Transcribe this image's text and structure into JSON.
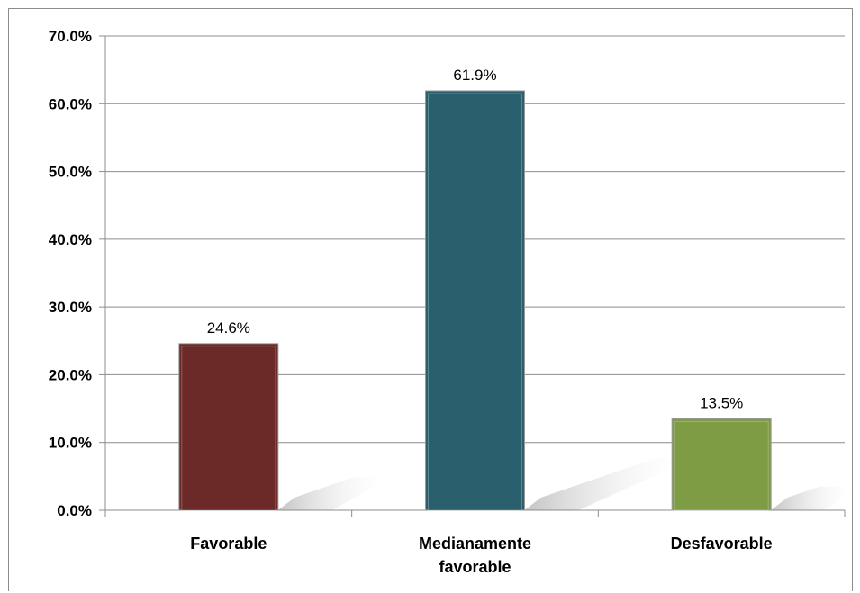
{
  "chart_data": {
    "type": "bar",
    "title": "",
    "xlabel": "",
    "ylabel": "",
    "categories": [
      "Favorable",
      "Medianamente favorable",
      "Desfavorable"
    ],
    "category_lines": [
      [
        "Favorable"
      ],
      [
        "Medianamente",
        "favorable"
      ],
      [
        "Desfavorable"
      ]
    ],
    "values": [
      24.6,
      61.9,
      13.5
    ],
    "value_labels": [
      "24.6%",
      "61.9%",
      "13.5%"
    ],
    "colors": [
      "#6b2a28",
      "#2a5f6e",
      "#7d9c43"
    ],
    "ylim": [
      0,
      70
    ],
    "yticks": [
      0,
      10,
      20,
      30,
      40,
      50,
      60,
      70
    ],
    "ytick_labels": [
      "0.0%",
      "10.0%",
      "20.0%",
      "30.0%",
      "40.0%",
      "50.0%",
      "60.0%",
      "70.0%"
    ],
    "grid": true,
    "legend": "none"
  }
}
